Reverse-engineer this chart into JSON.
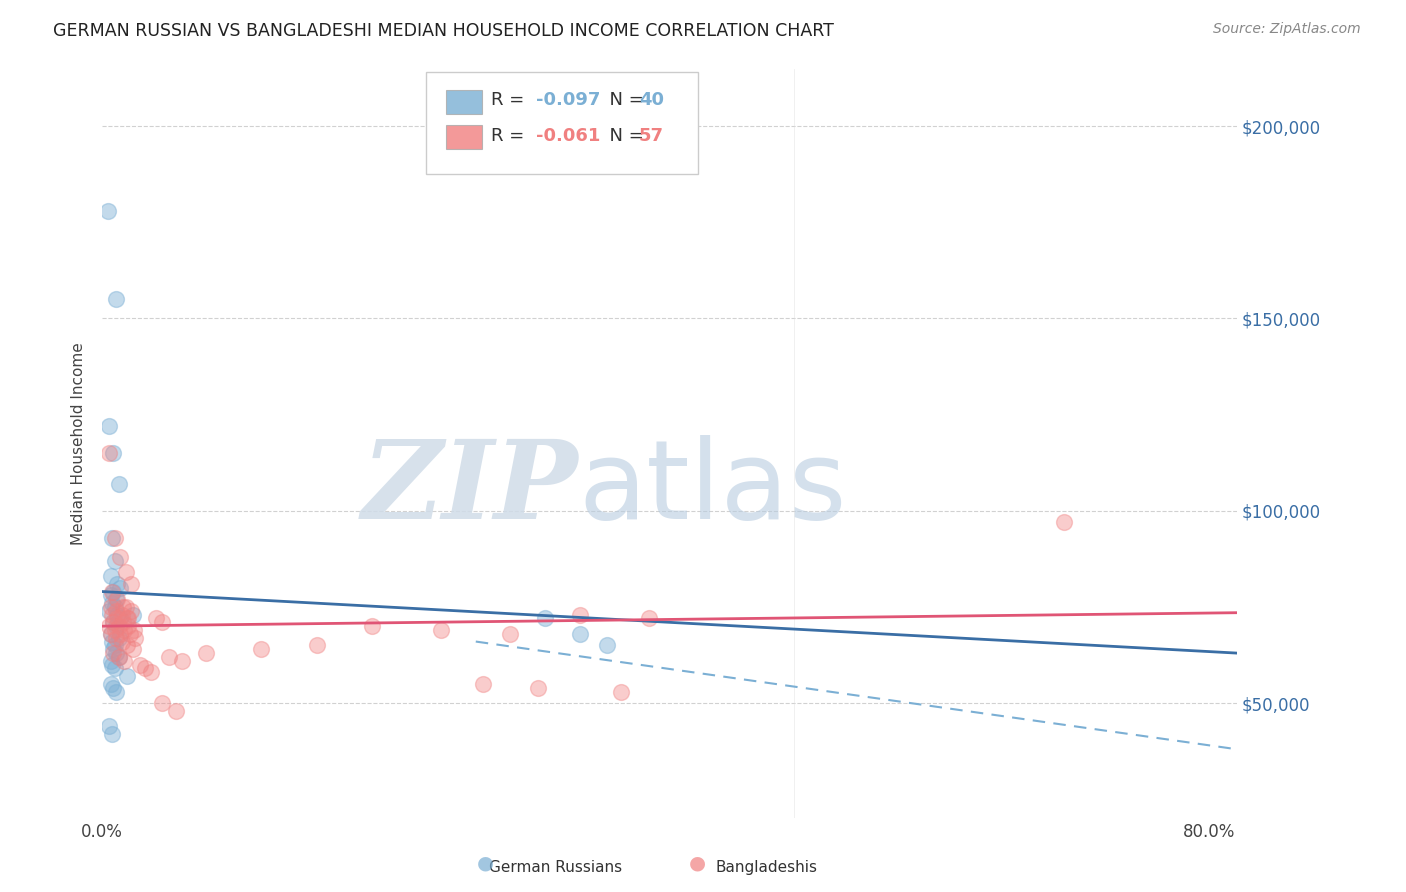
{
  "title": "GERMAN RUSSIAN VS BANGLADESHI MEDIAN HOUSEHOLD INCOME CORRELATION CHART",
  "source": "Source: ZipAtlas.com",
  "ylabel": "Median Household Income",
  "xlim": [
    0,
    0.82
  ],
  "ylim": [
    20000,
    215000
  ],
  "blue_R": "-0.097",
  "blue_N": "40",
  "pink_R": "-0.061",
  "pink_N": "57",
  "blue_color": "#7BAFD4",
  "pink_color": "#F08080",
  "legend_label_blue": "German Russians",
  "legend_label_pink": "Bangladeshis",
  "yticks": [
    50000,
    100000,
    150000,
    200000
  ],
  "ytick_labels": [
    "$50,000",
    "$100,000",
    "$150,000",
    "$200,000"
  ],
  "xticks": [
    0,
    0.1,
    0.2,
    0.3,
    0.4,
    0.5,
    0.6,
    0.7,
    0.8
  ],
  "xtick_labels": [
    "0.0%",
    "",
    "",
    "",
    "",
    "",
    "",
    "",
    "80.0%"
  ],
  "blue_line_x": [
    0.0,
    0.82
  ],
  "blue_line_y": [
    79000,
    63000
  ],
  "pink_line_x": [
    0.0,
    0.82
  ],
  "pink_line_y": [
    70000,
    73500
  ],
  "dash_line_x": [
    0.27,
    0.82
  ],
  "dash_line_y": [
    66000,
    38000
  ],
  "blue_scatter_x": [
    0.004,
    0.01,
    0.005,
    0.008,
    0.012,
    0.007,
    0.009,
    0.006,
    0.011,
    0.013,
    0.008,
    0.006,
    0.01,
    0.007,
    0.009,
    0.005,
    0.011,
    0.013,
    0.008,
    0.01,
    0.006,
    0.012,
    0.007,
    0.009,
    0.008,
    0.01,
    0.012,
    0.006,
    0.007,
    0.009,
    0.022,
    0.018,
    0.006,
    0.008,
    0.01,
    0.005,
    0.007,
    0.32,
    0.345,
    0.365
  ],
  "blue_scatter_y": [
    178000,
    155000,
    122000,
    115000,
    107000,
    93000,
    87000,
    83000,
    81000,
    80000,
    79000,
    78000,
    77000,
    76000,
    75000,
    74000,
    73000,
    72000,
    71000,
    70000,
    68000,
    67000,
    66000,
    65000,
    64000,
    63000,
    62000,
    61000,
    60000,
    59000,
    73000,
    57000,
    55000,
    54000,
    53000,
    44000,
    42000,
    72000,
    68000,
    65000
  ],
  "pink_scatter_x": [
    0.005,
    0.009,
    0.013,
    0.017,
    0.021,
    0.007,
    0.011,
    0.015,
    0.019,
    0.006,
    0.01,
    0.014,
    0.018,
    0.008,
    0.012,
    0.016,
    0.02,
    0.024,
    0.005,
    0.009,
    0.013,
    0.017,
    0.021,
    0.007,
    0.011,
    0.015,
    0.019,
    0.023,
    0.006,
    0.01,
    0.014,
    0.018,
    0.022,
    0.008,
    0.012,
    0.016,
    0.027,
    0.031,
    0.035,
    0.039,
    0.043,
    0.195,
    0.245,
    0.295,
    0.345,
    0.395,
    0.695,
    0.275,
    0.315,
    0.375,
    0.155,
    0.115,
    0.075,
    0.048,
    0.058,
    0.043,
    0.053
  ],
  "pink_scatter_y": [
    115000,
    93000,
    88000,
    84000,
    81000,
    79000,
    77000,
    75000,
    72000,
    75000,
    74000,
    73000,
    72000,
    71000,
    70000,
    69000,
    68000,
    67000,
    70000,
    69000,
    68000,
    75000,
    74000,
    73000,
    72000,
    71000,
    70000,
    69000,
    68000,
    67000,
    66000,
    65000,
    64000,
    63000,
    62000,
    61000,
    60000,
    59000,
    58000,
    72000,
    71000,
    70000,
    69000,
    68000,
    73000,
    72000,
    97000,
    55000,
    54000,
    53000,
    65000,
    64000,
    63000,
    62000,
    61000,
    50000,
    48000
  ]
}
